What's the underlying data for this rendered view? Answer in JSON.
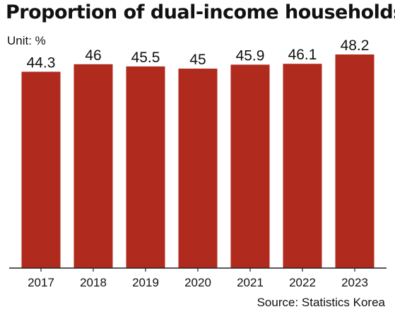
{
  "chart_data": {
    "type": "bar",
    "title": "Proportion of dual-income households",
    "unit": "Unit: %",
    "source": "Source: Statistics Korea",
    "categories": [
      "2017",
      "2018",
      "2019",
      "2020",
      "2021",
      "2022",
      "2023"
    ],
    "values": [
      44.3,
      46,
      45.5,
      45,
      45.9,
      46.1,
      48.2
    ],
    "value_labels": [
      "44.3",
      "46",
      "45.5",
      "45",
      "45.9",
      "46.1",
      "48.2"
    ],
    "bar_color": "#b02a1e",
    "axis_color": "#222222",
    "ylim": [
      0,
      48.2
    ],
    "grid": false,
    "legend": "none"
  }
}
